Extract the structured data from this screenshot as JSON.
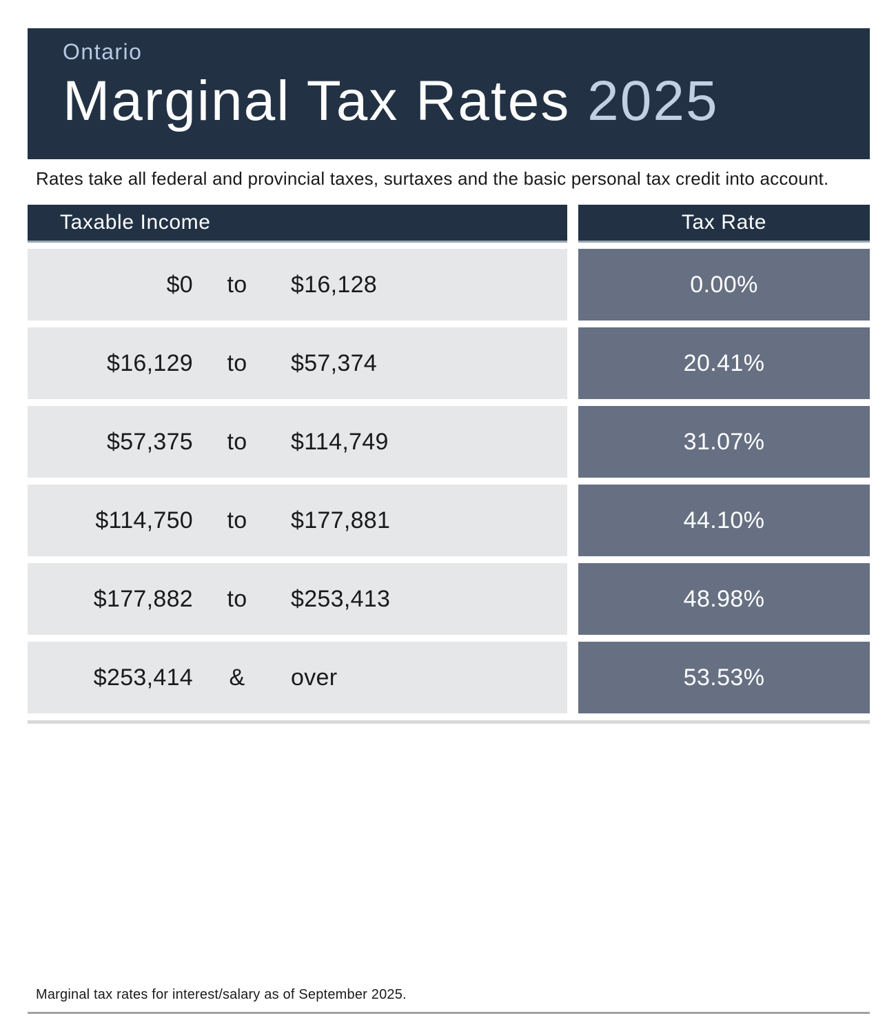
{
  "header": {
    "region": "Ontario",
    "title": "Marginal Tax Rates ",
    "year": "2025"
  },
  "subtitle": "Rates take all federal and provincial taxes, surtaxes and the basic personal tax credit into account.",
  "table": {
    "income_header": "Taxable Income",
    "rate_header": "Tax Rate",
    "rows": [
      {
        "from": "$0",
        "sep": "to",
        "to": "$16,128",
        "rate": "0.00%"
      },
      {
        "from": "$16,129",
        "sep": "to",
        "to": "$57,374",
        "rate": "20.41%"
      },
      {
        "from": "$57,375",
        "sep": "to",
        "to": "$114,749",
        "rate": "31.07%"
      },
      {
        "from": "$114,750",
        "sep": "to",
        "to": "$177,881",
        "rate": "44.10%"
      },
      {
        "from": "$177,882",
        "sep": "to",
        "to": "$253,413",
        "rate": "48.98%"
      },
      {
        "from": "$253,414",
        "sep": "&",
        "to": "over",
        "rate": "53.53%"
      }
    ]
  },
  "footnote": "Marginal tax rates for interest/salary as of September 2025.",
  "colors": {
    "banner_navy": "#223244",
    "accent_periwinkle": "#c2cee2",
    "header_bar_navy": "#223244",
    "header_bar_edge": "#9aa5b2",
    "income_cell_gray": "#e6e7e9",
    "rate_cell_slate": "#667082",
    "divider_gray": "#d8d8da",
    "rule_gray": "#a2a2a2",
    "text_dark": "#1a1a1a",
    "text_white": "#ffffff"
  }
}
